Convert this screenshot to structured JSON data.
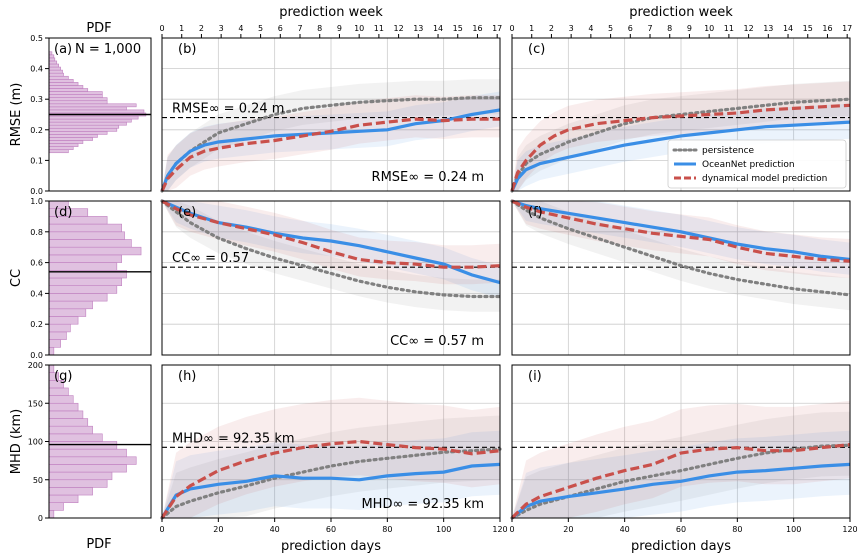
{
  "figure": {
    "top_axis_label": "prediction week",
    "bottom_axis_label": "prediction days",
    "pdf_label": "PDF",
    "week_ticks": [
      "0",
      "1",
      "2",
      "3",
      "4",
      "5",
      "6",
      "7",
      "8",
      "9",
      "10",
      "11",
      "12",
      "13",
      "14",
      "15",
      "16",
      "17"
    ],
    "day_ticks": [
      "0",
      "20",
      "40",
      "60",
      "80",
      "100",
      "120"
    ]
  },
  "legend": {
    "position": "upper panel (c), right",
    "items": [
      {
        "label": "persistence",
        "color": "#808080",
        "style": "dotted"
      },
      {
        "label": "OceanNet prediction",
        "color": "#3a8ee6",
        "style": "solid"
      },
      {
        "label": "dynamical model prediction",
        "color": "#c9504b",
        "style": "dashed"
      }
    ]
  },
  "colors": {
    "persistence": "#808080",
    "oceannet": "#3a8ee6",
    "dynamical": "#c9504b",
    "hist_fill": "#d8b2d8",
    "hist_edge": "#c080c0"
  },
  "chart_data": [
    {
      "panel": "RMSE",
      "type": "line",
      "ylabel": "RMSE (m)",
      "ylim": [
        0,
        0.5
      ],
      "yticks": [
        "0.0",
        "0.1",
        "0.2",
        "0.3",
        "0.4",
        "0.5"
      ],
      "pdf": {
        "label": "(a)",
        "text": "N = 1,000",
        "mean": 0.25,
        "bins": [
          0.01,
          0.02,
          0.03,
          0.04,
          0.05,
          0.06,
          0.07,
          0.08,
          0.09,
          0.1,
          0.11,
          0.12,
          0.13,
          0.14,
          0.15,
          0.16,
          0.17,
          0.18,
          0.19,
          0.2,
          0.21,
          0.22,
          0.23,
          0.24,
          0.25,
          0.26,
          0.27,
          0.28,
          0.29,
          0.3,
          0.31,
          0.32,
          0.33,
          0.34,
          0.35,
          0.36,
          0.37,
          0.38,
          0.39,
          0.4,
          0.41,
          0.42,
          0.43,
          0.44,
          0.45
        ],
        "counts": [
          0,
          0,
          0,
          0,
          0,
          0,
          0,
          0,
          0,
          0,
          0,
          0,
          0.2,
          0.25,
          0.3,
          0.35,
          0.45,
          0.5,
          0.6,
          0.7,
          0.72,
          0.8,
          0.85,
          0.92,
          1.0,
          0.98,
          0.8,
          0.9,
          0.6,
          0.6,
          0.55,
          0.55,
          0.4,
          0.35,
          0.3,
          0.25,
          0.2,
          0.15,
          0.14,
          0.12,
          0.1,
          0.08,
          0.06,
          0.05,
          0.03
        ]
      },
      "panels": [
        {
          "label": "(b)",
          "ref_value": 0.24,
          "ref_text_top": "RMSE∞ = 0.24 m",
          "ref_text_bottom": "RMSE∞ = 0.24 m",
          "days": [
            0,
            2,
            5,
            10,
            15,
            20,
            30,
            40,
            50,
            60,
            70,
            80,
            90,
            100,
            110,
            120
          ],
          "persistence": [
            0,
            0.05,
            0.09,
            0.13,
            0.16,
            0.19,
            0.22,
            0.25,
            0.27,
            0.28,
            0.29,
            0.295,
            0.3,
            0.3,
            0.305,
            0.305
          ],
          "oceannet": [
            0,
            0.05,
            0.09,
            0.13,
            0.15,
            0.16,
            0.17,
            0.18,
            0.185,
            0.19,
            0.195,
            0.2,
            0.22,
            0.23,
            0.25,
            0.265
          ],
          "dynamical": [
            0,
            0.04,
            0.07,
            0.11,
            0.13,
            0.14,
            0.155,
            0.165,
            0.18,
            0.195,
            0.215,
            0.225,
            0.235,
            0.23,
            0.235,
            0.235
          ]
        },
        {
          "label": "(c)",
          "ref_value": 0.24,
          "days": [
            0,
            2,
            5,
            10,
            15,
            20,
            30,
            40,
            50,
            60,
            70,
            80,
            90,
            100,
            110,
            120
          ],
          "persistence": [
            0,
            0.05,
            0.09,
            0.12,
            0.14,
            0.16,
            0.19,
            0.22,
            0.24,
            0.25,
            0.26,
            0.27,
            0.28,
            0.29,
            0.295,
            0.3
          ],
          "oceannet": [
            0,
            0.04,
            0.07,
            0.09,
            0.1,
            0.11,
            0.13,
            0.15,
            0.165,
            0.18,
            0.19,
            0.2,
            0.21,
            0.215,
            0.22,
            0.225
          ],
          "dynamical": [
            0,
            0.06,
            0.1,
            0.15,
            0.18,
            0.2,
            0.22,
            0.23,
            0.24,
            0.245,
            0.25,
            0.255,
            0.265,
            0.27,
            0.275,
            0.28
          ]
        }
      ]
    },
    {
      "panel": "CC",
      "type": "line",
      "ylabel": "CC",
      "ylim": [
        0,
        1.0
      ],
      "yticks": [
        "0.0",
        "0.2",
        "0.4",
        "0.6",
        "0.8",
        "1.0"
      ],
      "pdf": {
        "label": "(d)",
        "mean": 0.54,
        "bins": [
          0.025,
          0.075,
          0.125,
          0.175,
          0.225,
          0.275,
          0.325,
          0.375,
          0.425,
          0.475,
          0.525,
          0.575,
          0.625,
          0.675,
          0.725,
          0.775,
          0.825,
          0.875,
          0.925,
          0.975
        ],
        "counts": [
          0.05,
          0.12,
          0.18,
          0.22,
          0.3,
          0.38,
          0.45,
          0.6,
          0.7,
          0.75,
          0.8,
          0.7,
          0.75,
          0.95,
          0.85,
          0.78,
          0.75,
          0.6,
          0.4,
          0.2
        ]
      },
      "panels": [
        {
          "label": "(e)",
          "ref_value": 0.57,
          "ref_text_top": "CC∞ = 0.57",
          "ref_text_bottom": "CC∞ = 0.57 m",
          "days": [
            0,
            5,
            10,
            20,
            30,
            40,
            50,
            60,
            70,
            80,
            90,
            100,
            110,
            120
          ],
          "persistence": [
            1.0,
            0.93,
            0.86,
            0.76,
            0.69,
            0.63,
            0.58,
            0.53,
            0.48,
            0.44,
            0.41,
            0.39,
            0.38,
            0.38
          ],
          "oceannet": [
            1.0,
            0.96,
            0.92,
            0.86,
            0.83,
            0.79,
            0.76,
            0.74,
            0.71,
            0.67,
            0.63,
            0.59,
            0.52,
            0.47
          ],
          "dynamical": [
            1.0,
            0.95,
            0.91,
            0.86,
            0.82,
            0.78,
            0.73,
            0.67,
            0.62,
            0.6,
            0.59,
            0.57,
            0.57,
            0.58
          ]
        },
        {
          "label": "(f)",
          "ref_value": 0.57,
          "days": [
            0,
            5,
            10,
            20,
            30,
            40,
            50,
            60,
            70,
            80,
            90,
            100,
            110,
            120
          ],
          "persistence": [
            1.0,
            0.94,
            0.89,
            0.82,
            0.76,
            0.7,
            0.64,
            0.58,
            0.53,
            0.49,
            0.46,
            0.43,
            0.41,
            0.39
          ],
          "oceannet": [
            1.0,
            0.97,
            0.95,
            0.92,
            0.89,
            0.86,
            0.83,
            0.8,
            0.76,
            0.72,
            0.69,
            0.67,
            0.64,
            0.62
          ],
          "dynamical": [
            1.0,
            0.96,
            0.93,
            0.89,
            0.85,
            0.82,
            0.79,
            0.77,
            0.75,
            0.7,
            0.66,
            0.64,
            0.62,
            0.61
          ]
        }
      ]
    },
    {
      "panel": "MHD",
      "type": "line",
      "ylabel": "MHD (km)",
      "ylim": [
        0,
        200
      ],
      "yticks": [
        "0",
        "50",
        "100",
        "150",
        "200"
      ],
      "pdf": {
        "label": "(g)",
        "mean": 96,
        "bins": [
          5,
          15,
          25,
          35,
          45,
          55,
          65,
          75,
          85,
          95,
          105,
          115,
          125,
          135,
          145,
          155,
          165,
          175,
          185,
          195
        ],
        "counts": [
          0.05,
          0.15,
          0.3,
          0.45,
          0.6,
          0.65,
          0.8,
          0.9,
          0.8,
          0.7,
          0.55,
          0.45,
          0.4,
          0.35,
          0.3,
          0.25,
          0.2,
          0.15,
          0.1,
          0.05
        ]
      },
      "panels": [
        {
          "label": "(h)",
          "ref_value": 92.35,
          "ref_text_top": "MHD∞ = 92.35 km",
          "ref_text_bottom": "MHD∞ = 92.35 km",
          "days": [
            0,
            5,
            10,
            20,
            30,
            40,
            50,
            60,
            70,
            80,
            90,
            100,
            110,
            120
          ],
          "persistence": [
            0,
            15,
            22,
            33,
            42,
            52,
            60,
            68,
            74,
            78,
            82,
            86,
            88,
            90
          ],
          "oceannet": [
            0,
            30,
            38,
            44,
            48,
            55,
            52,
            52,
            50,
            55,
            58,
            60,
            68,
            70
          ],
          "dynamical": [
            0,
            28,
            42,
            62,
            75,
            85,
            92,
            97,
            100,
            96,
            92,
            90,
            84,
            88
          ]
        },
        {
          "label": "(i)",
          "ref_value": 92.35,
          "days": [
            0,
            5,
            10,
            20,
            30,
            40,
            50,
            60,
            70,
            80,
            90,
            100,
            110,
            120
          ],
          "persistence": [
            0,
            10,
            18,
            28,
            38,
            48,
            55,
            62,
            70,
            78,
            85,
            90,
            94,
            95
          ],
          "oceannet": [
            0,
            15,
            22,
            28,
            33,
            38,
            44,
            48,
            55,
            60,
            62,
            65,
            68,
            70
          ],
          "dynamical": [
            0,
            18,
            28,
            40,
            52,
            62,
            70,
            85,
            90,
            92,
            88,
            88,
            92,
            96
          ]
        }
      ]
    }
  ]
}
